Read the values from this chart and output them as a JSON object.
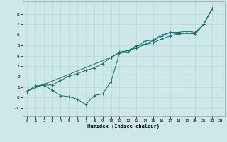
{
  "xlabel": "Humidex (Indice chaleur)",
  "bg_color": "#cce8e8",
  "grid_color": "#b8d8d8",
  "line_color": "#1a6b6b",
  "xlim": [
    -0.5,
    23.5
  ],
  "ylim": [
    -1.8,
    9.2
  ],
  "xticks": [
    0,
    1,
    2,
    3,
    4,
    5,
    6,
    7,
    8,
    9,
    10,
    11,
    12,
    13,
    14,
    15,
    16,
    17,
    18,
    19,
    20,
    21,
    22,
    23
  ],
  "yticks": [
    -1,
    0,
    1,
    2,
    3,
    4,
    5,
    6,
    7,
    8
  ],
  "lines": [
    {
      "x": [
        0,
        1,
        2,
        3,
        4,
        5,
        6,
        7,
        8,
        9,
        10,
        11,
        12,
        13,
        14,
        15,
        16,
        17,
        18,
        19,
        20,
        21,
        22
      ],
      "y": [
        0.6,
        1.1,
        1.2,
        0.7,
        0.2,
        0.1,
        -0.15,
        -0.65,
        0.2,
        0.35,
        1.55,
        4.25,
        4.35,
        4.8,
        5.4,
        5.5,
        6.0,
        6.2,
        6.1,
        6.15,
        6.1,
        7.0,
        8.5
      ]
    },
    {
      "x": [
        0,
        1,
        2,
        3,
        4,
        5,
        6,
        7,
        8,
        9,
        10,
        11,
        12,
        13,
        14,
        15,
        16,
        17,
        18,
        19,
        20,
        21,
        22
      ],
      "y": [
        0.6,
        1.1,
        1.2,
        1.2,
        1.65,
        2.05,
        2.3,
        2.6,
        2.85,
        3.25,
        3.85,
        4.25,
        4.5,
        4.75,
        5.05,
        5.25,
        5.6,
        5.9,
        6.1,
        6.2,
        6.1,
        7.0,
        8.5
      ]
    },
    {
      "x": [
        0,
        10,
        11,
        12,
        13,
        14,
        15,
        16,
        17,
        18,
        19,
        20,
        21,
        22
      ],
      "y": [
        0.6,
        3.85,
        4.35,
        4.5,
        4.95,
        5.1,
        5.45,
        5.85,
        6.25,
        6.25,
        6.35,
        6.25,
        7.0,
        8.5
      ]
    }
  ]
}
